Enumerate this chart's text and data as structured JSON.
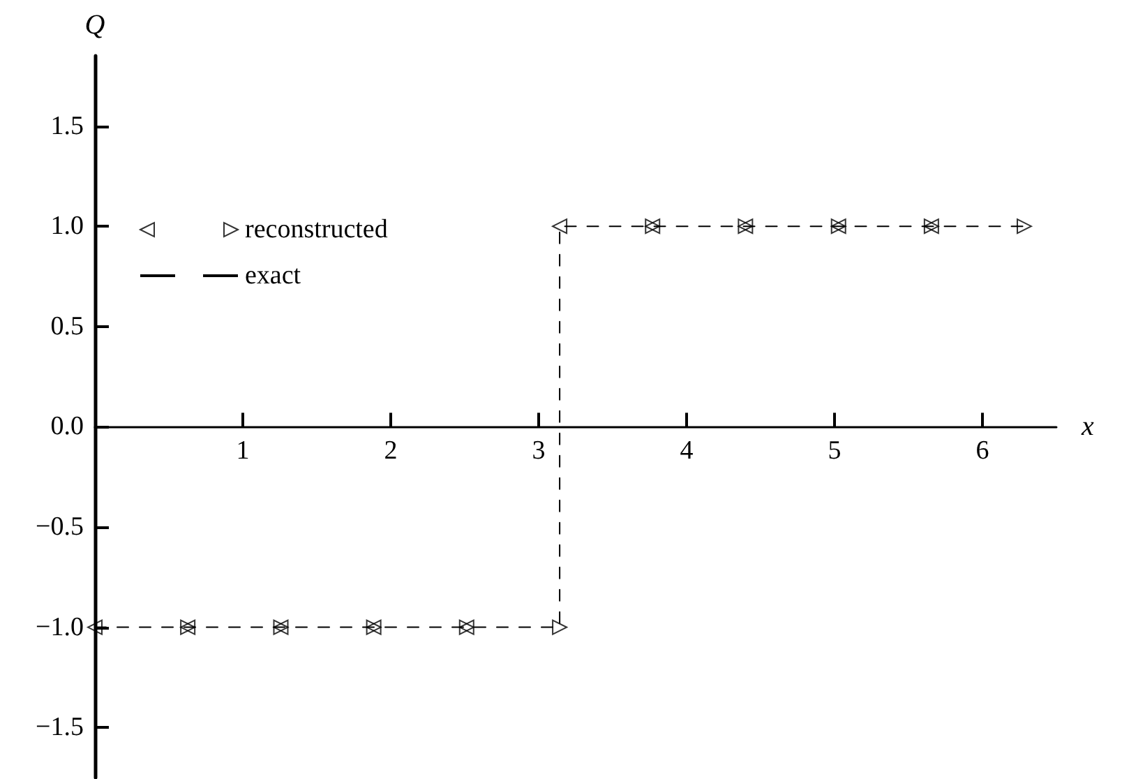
{
  "chart_data": {
    "type": "scatter",
    "xlabel": "x",
    "ylabel": "Q",
    "xlim": [
      0,
      6.5
    ],
    "ylim": [
      -1.75,
      1.85
    ],
    "xticks": [
      1,
      2,
      3,
      4,
      5,
      6
    ],
    "yticks": [
      {
        "value": -1.5,
        "label": "−1.5"
      },
      {
        "value": -1,
        "label": "−1.0"
      },
      {
        "value": -0.5,
        "label": "−0.5"
      },
      {
        "value": 0,
        "label": "0.0"
      },
      {
        "value": 0.5,
        "label": "0.5"
      },
      {
        "value": 1,
        "label": "1.0"
      },
      {
        "value": 1.5,
        "label": "1.5"
      }
    ],
    "grid": false,
    "legend": "top left",
    "series": [
      {
        "marker": "triangle",
        "color": "#000000",
        "x": [
          0,
          0.628,
          1.257,
          1.885,
          2.513,
          3.142,
          3.77,
          4.398,
          5.027,
          5.655
        ],
        "values": [
          -1,
          -1,
          -1,
          -1,
          -1,
          1,
          1,
          1,
          1,
          1
        ]
      },
      {
        "name": "reconstructed",
        "marker": "triangle",
        "color": "#000000",
        "x": [
          0.628,
          1.257,
          1.885,
          2.513,
          3.142,
          3.77,
          4.398,
          5.027,
          5.655,
          6.283
        ],
        "values": [
          -1,
          -1,
          -1,
          -1,
          -1,
          1,
          1,
          1,
          1,
          1
        ]
      },
      {
        "type": "line",
        "name": "exact",
        "line_style": "dashed",
        "marker": "none",
        "color": "#000000",
        "x": [
          0,
          3.142,
          3.142,
          6.283
        ],
        "values": [
          -1,
          -1,
          1,
          1
        ]
      }
    ]
  }
}
